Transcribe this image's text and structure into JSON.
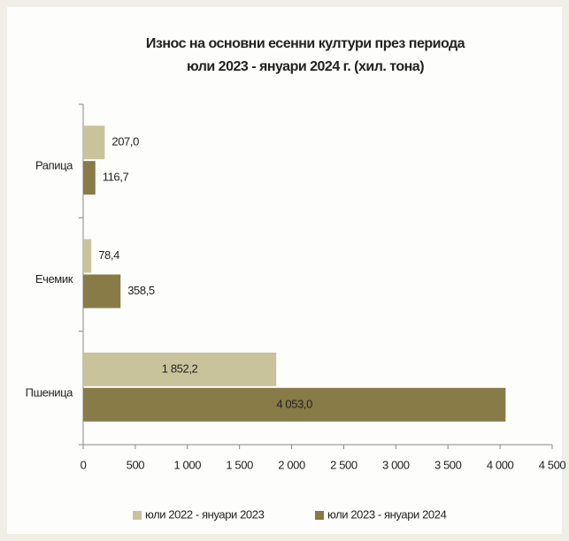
{
  "chart_data": {
    "type": "hbar",
    "title": [
      "Износ на основни есенни култури през периода",
      "юли 2023 - януари 2024 г. (хил. тона)"
    ],
    "categories": [
      "Рапица",
      "Ечемик",
      "Пшеница"
    ],
    "series": [
      {
        "name": "юли 2022 - януари 2023",
        "color": "#c9c39b",
        "values": [
          207.0,
          78.4,
          1852.2
        ],
        "value_labels": [
          "207,0",
          "78,4",
          "1 852,2"
        ]
      },
      {
        "name": "юли 2023 - януари 2024",
        "color": "#877b47",
        "values": [
          116.7,
          358.5,
          4053.0
        ],
        "value_labels": [
          "116,7",
          "358,5",
          "4 053,0"
        ]
      }
    ],
    "xlim": [
      0,
      4500
    ],
    "xticks": [
      0,
      500,
      {
        "value": 1000,
        "label": "1 000"
      },
      {
        "value": 1500,
        "label": "1 500"
      },
      {
        "value": 2000,
        "label": "2 000"
      },
      {
        "value": 2500,
        "label": "2 500"
      },
      {
        "value": 3000,
        "label": "3 000"
      },
      {
        "value": 3500,
        "label": "3 500"
      },
      {
        "value": 4000,
        "label": "4 000"
      },
      {
        "value": 4500,
        "label": "4 500"
      }
    ],
    "legend": "bottom"
  }
}
